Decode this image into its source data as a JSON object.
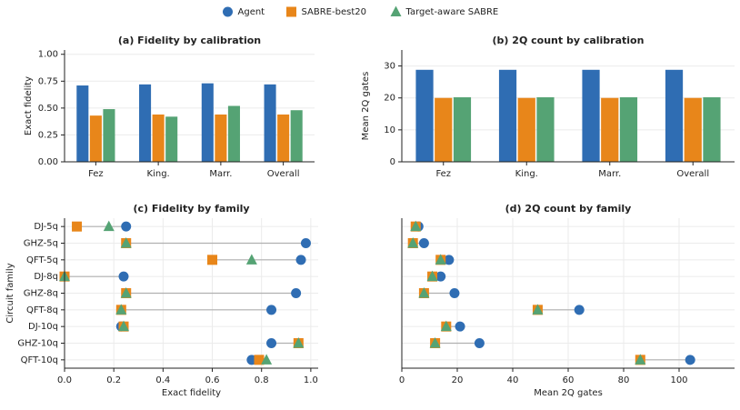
{
  "chart_data": [
    {
      "type": "bar",
      "title": "(a) Fidelity by calibration",
      "ylabel": "Exact fidelity",
      "legend": "top",
      "categories": [
        "Fez",
        "King.",
        "Marr.",
        "Overall"
      ],
      "series": [
        {
          "name": "Agent",
          "color": "#2f6db3",
          "marker": "circle",
          "values": [
            0.71,
            0.72,
            0.73,
            0.72
          ]
        },
        {
          "name": "SABRE-best20",
          "color": "#e8861a",
          "marker": "square",
          "values": [
            0.43,
            0.44,
            0.44,
            0.44
          ]
        },
        {
          "name": "Target-aware SABRE",
          "color": "#55a374",
          "marker": "triangle",
          "values": [
            0.49,
            0.42,
            0.52,
            0.48
          ]
        }
      ],
      "ylim": [
        0,
        1.04
      ],
      "yticks": [
        {
          "value": 0,
          "label": "0.00"
        },
        0.25,
        {
          "value": 0.5,
          "label": "0.50"
        },
        0.75,
        {
          "value": 1,
          "label": "1.00"
        }
      ],
      "grid": true
    },
    {
      "type": "bar",
      "title": "(b) 2Q count by calibration",
      "ylabel": "Mean 2Q gates",
      "categories": [
        "Fez",
        "King.",
        "Marr.",
        "Overall"
      ],
      "series": [
        {
          "name": "Agent",
          "color": "#2f6db3",
          "values": [
            28.8,
            28.8,
            28.8,
            28.8
          ]
        },
        {
          "name": "SABRE-best20",
          "color": "#e8861a",
          "values": [
            20,
            20,
            20,
            20
          ]
        },
        {
          "name": "Target-aware SABRE",
          "color": "#55a374",
          "values": [
            20.2,
            20.2,
            20.2,
            20.2
          ]
        }
      ],
      "ylim": [
        0,
        35
      ],
      "yticks": [
        0,
        10,
        20,
        30
      ],
      "grid": true
    },
    {
      "type": "dot",
      "title": "(c) Fidelity by family",
      "xlabel": "Exact fidelity",
      "ylabel": "Circuit family",
      "categories": [
        "DJ-5q",
        "GHZ-5q",
        "QFT-5q",
        "DJ-8q",
        "GHZ-8q",
        "QFT-8q",
        "DJ-10q",
        "GHZ-10q",
        "QFT-10q"
      ],
      "series": [
        {
          "name": "Agent",
          "color": "#2f6db3",
          "marker": "circle",
          "values": [
            0.25,
            0.98,
            0.96,
            0.24,
            0.94,
            0.84,
            0.23,
            0.84,
            0.76
          ]
        },
        {
          "name": "SABRE-best20",
          "color": "#e8861a",
          "marker": "square",
          "values": [
            0.05,
            0.25,
            0.6,
            0.0,
            0.25,
            0.23,
            0.24,
            0.95,
            0.79
          ]
        },
        {
          "name": "Target-aware SABRE",
          "color": "#55a374",
          "marker": "triangle",
          "values": [
            0.18,
            0.25,
            0.76,
            0.0,
            0.25,
            0.23,
            0.24,
            0.95,
            0.82
          ]
        }
      ],
      "xlim": [
        0,
        1.03
      ],
      "xticks": [
        {
          "value": 0,
          "label": "0.0"
        },
        0.2,
        0.4,
        0.6,
        0.8,
        {
          "value": 1,
          "label": "1.0"
        }
      ],
      "grid": true
    },
    {
      "type": "dot",
      "title": "(d) 2Q count by family",
      "xlabel": "Mean 2Q gates",
      "series": [
        {
          "name": "Agent",
          "color": "#2f6db3",
          "marker": "circle",
          "values": [
            6,
            8,
            17,
            14,
            19,
            64,
            21,
            28,
            104
          ]
        },
        {
          "name": "SABRE-best20",
          "color": "#e8861a",
          "marker": "square",
          "values": [
            5,
            4,
            14,
            11,
            8,
            49,
            16,
            12,
            86
          ]
        },
        {
          "name": "Target-aware SABRE",
          "color": "#55a374",
          "marker": "triangle",
          "values": [
            5,
            4,
            14,
            11,
            8,
            49,
            16,
            12,
            86
          ]
        }
      ],
      "xlim": [
        0,
        120
      ],
      "xticks": [
        0,
        20,
        40,
        60,
        80,
        100
      ],
      "grid": true
    }
  ]
}
